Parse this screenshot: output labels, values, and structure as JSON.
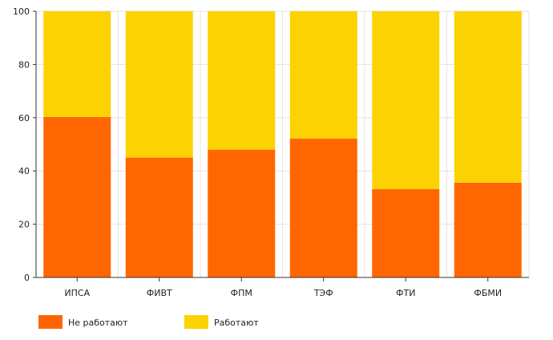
{
  "chart_data": {
    "type": "bar",
    "stacked": true,
    "categories": [
      "ИПСА",
      "ФИВТ",
      "ФПМ",
      "ТЭФ",
      "ФТИ",
      "ФБМИ"
    ],
    "series": [
      {
        "name": "Не работают",
        "values": [
          60.3,
          45.0,
          48.0,
          52.2,
          33.2,
          35.6
        ],
        "color": "#ff6600"
      },
      {
        "name": "Работают",
        "values": [
          39.7,
          55.0,
          52.0,
          47.8,
          66.8,
          64.4
        ],
        "color": "#fcd202"
      }
    ],
    "y_ticks": [
      "0",
      "20",
      "40",
      "60",
      "80",
      "100"
    ],
    "ylim": [
      0,
      100
    ],
    "grid": true,
    "legend_position": "bottom-left"
  }
}
